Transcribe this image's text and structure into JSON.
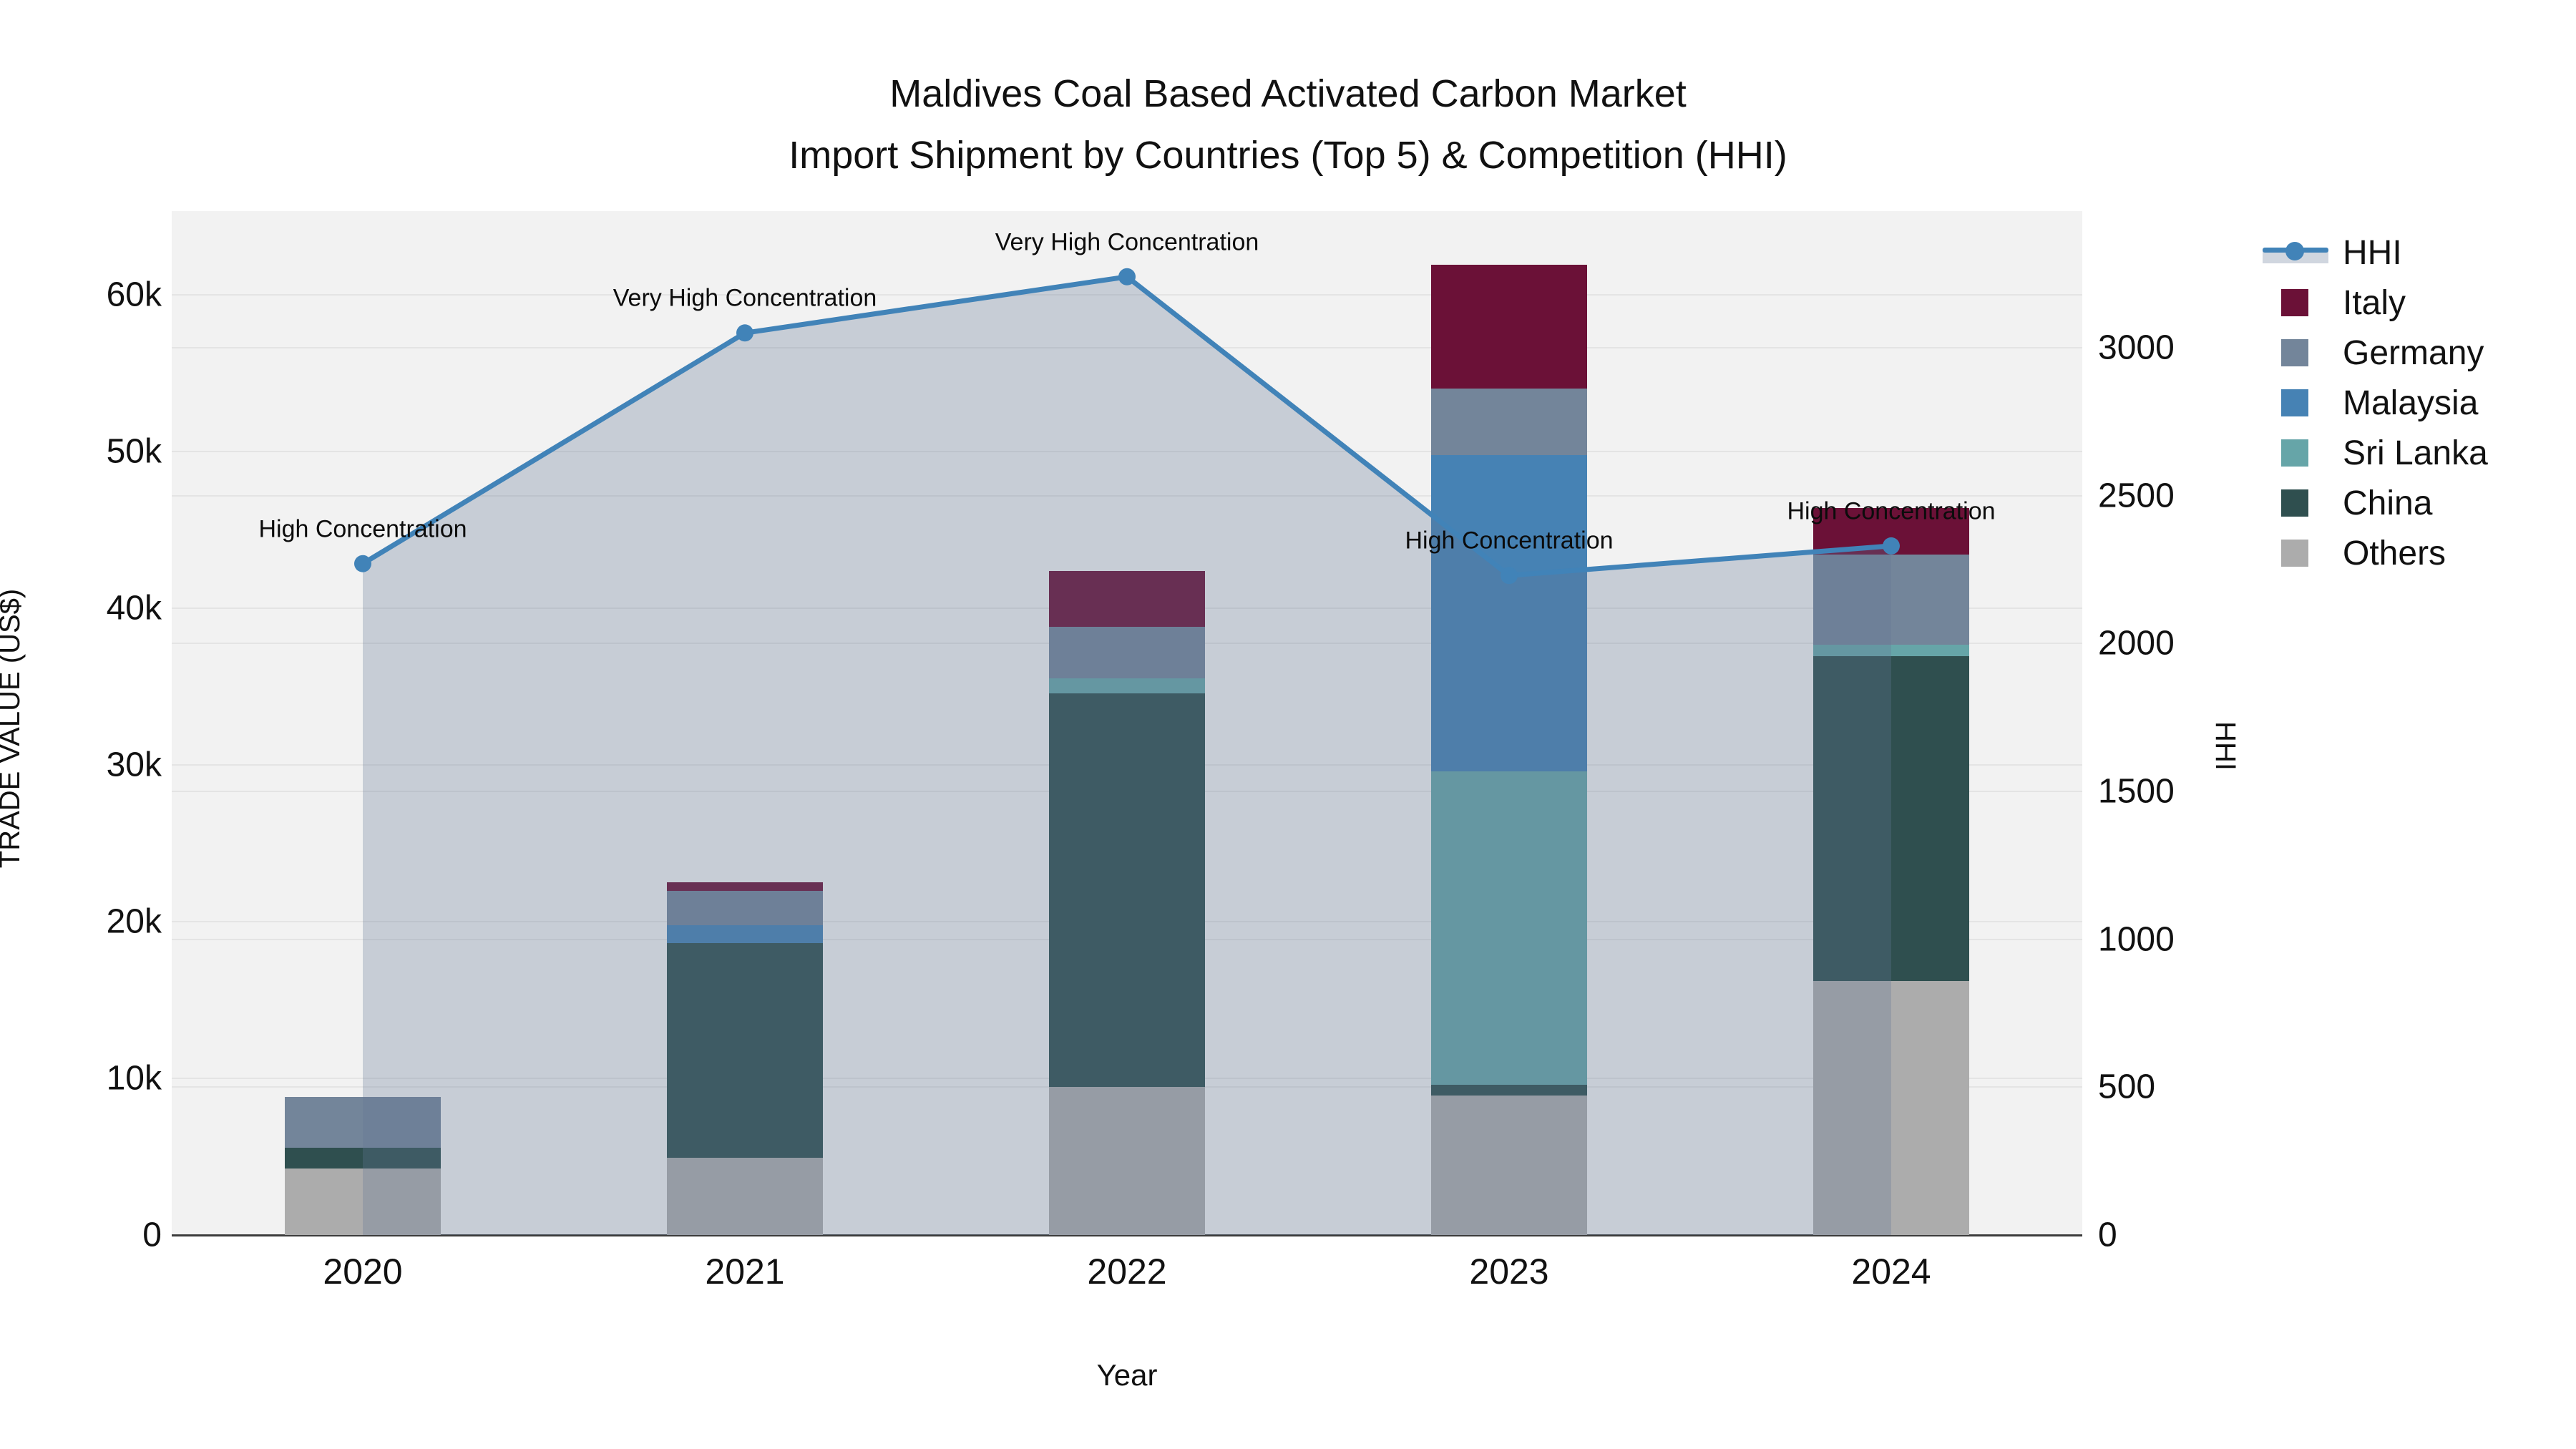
{
  "title": {
    "line1": "Maldives Coal Based Activated Carbon Market",
    "line2": "Import Shipment by Countries (Top 5) & Competition (HHI)"
  },
  "chart_data": {
    "type": "bar+line",
    "title": "Maldives Coal Based Activated Carbon Market Import Shipment by Countries (Top 5) & Competition (HHI)",
    "categories": [
      "2020",
      "2021",
      "2022",
      "2023",
      "2024"
    ],
    "x_title": "Year",
    "y_left": {
      "title": "TRADE VALUE (US$)",
      "tick_labels": [
        "0",
        "10k",
        "20k",
        "30k",
        "40k",
        "50k",
        "60k"
      ],
      "tick_values": [
        0,
        10000,
        20000,
        30000,
        40000,
        50000,
        60000
      ],
      "max": 65340
    },
    "y_right": {
      "title": "HHI",
      "tick_labels": [
        "0",
        "500",
        "1000",
        "1500",
        "2000",
        "2500",
        "3000"
      ],
      "tick_values": [
        0,
        500,
        1000,
        1500,
        2000,
        2500,
        3000
      ],
      "max": 3462
    },
    "bar_series": [
      {
        "name": "Others",
        "color": "#acacac",
        "values": [
          4230,
          4950,
          9450,
          8890,
          16210
        ]
      },
      {
        "name": "China",
        "color": "#2f4f4f",
        "values": [
          1330,
          13690,
          25100,
          690,
          20730
        ]
      },
      {
        "name": "Sri Lanka",
        "color": "#66a5a8",
        "values": [
          0,
          0,
          990,
          20020,
          740
        ]
      },
      {
        "name": "Malaysia",
        "color": "#4682b4",
        "values": [
          0,
          1110,
          0,
          20150,
          0
        ]
      },
      {
        "name": "Germany",
        "color": "#73859a",
        "values": [
          3260,
          2200,
          3290,
          4250,
          5730
        ]
      },
      {
        "name": "Italy",
        "color": "#6b1137",
        "values": [
          0,
          580,
          3530,
          7900,
          3000
        ]
      }
    ],
    "line_series": {
      "name": "HHI",
      "color": "#4183b8",
      "fill": "rgba(100,120,150,0.30)",
      "values": [
        2270,
        3050,
        3240,
        2230,
        2330
      ]
    },
    "annotations": [
      "High Concentration",
      "Very High Concentration",
      "Very High Concentration",
      "High Concentration",
      "High Concentration"
    ],
    "layout_hints": {
      "grid": true,
      "legend_position": "right",
      "plot_bg": "#f2f2f2"
    }
  }
}
